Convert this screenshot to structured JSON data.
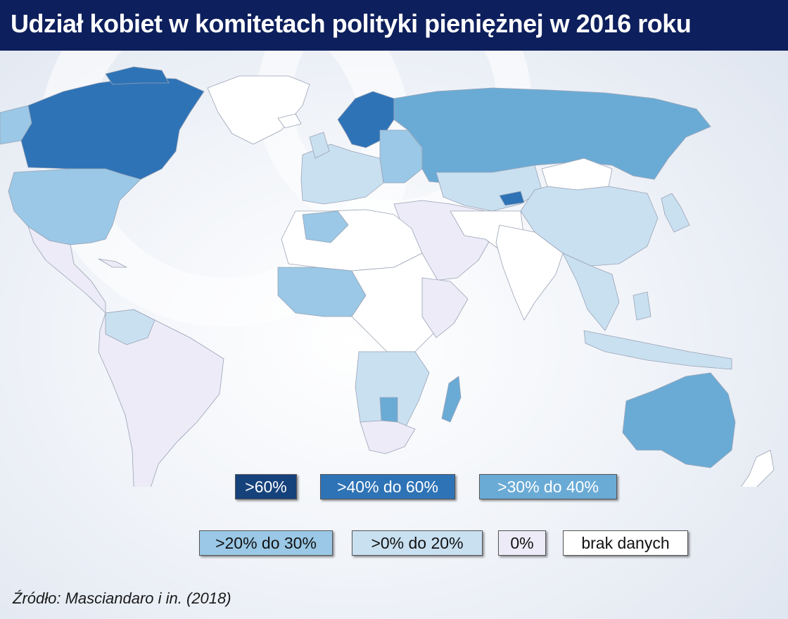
{
  "title": "Udział kobiet w komitetach polityki pieniężnej w 2016 roku",
  "colors": {
    "header": "#0d1f5c",
    "gt60": "#16427c",
    "40to60": "#2e73b6",
    "30to40": "#6aabd6",
    "20to30": "#9ac8e6",
    "0to20": "#c9e0f1",
    "zero": "#ecebf7",
    "no_data": "#ffffff"
  },
  "legend": [
    {
      "label": ">60%",
      "color": "#16427c",
      "text_color": "#ffffff"
    },
    {
      "label": ">40% do 60%",
      "color": "#2e73b6",
      "text_color": "#ffffff"
    },
    {
      "label": ">30% do 40%",
      "color": "#6aabd6",
      "text_color": "#ffffff"
    },
    {
      "label": ">20% do 30%",
      "color": "#9ac8e6",
      "text_color": "#111111"
    },
    {
      "label": ">0% do 20%",
      "color": "#c9e0f1",
      "text_color": "#111111"
    },
    {
      "label": "0%",
      "color": "#ecebf7",
      "text_color": "#111111"
    },
    {
      "label": "brak danych",
      "color": "#ffffff",
      "text_color": "#111111"
    }
  ],
  "source": "Źródło: Masciandaro i in. (2018)"
}
